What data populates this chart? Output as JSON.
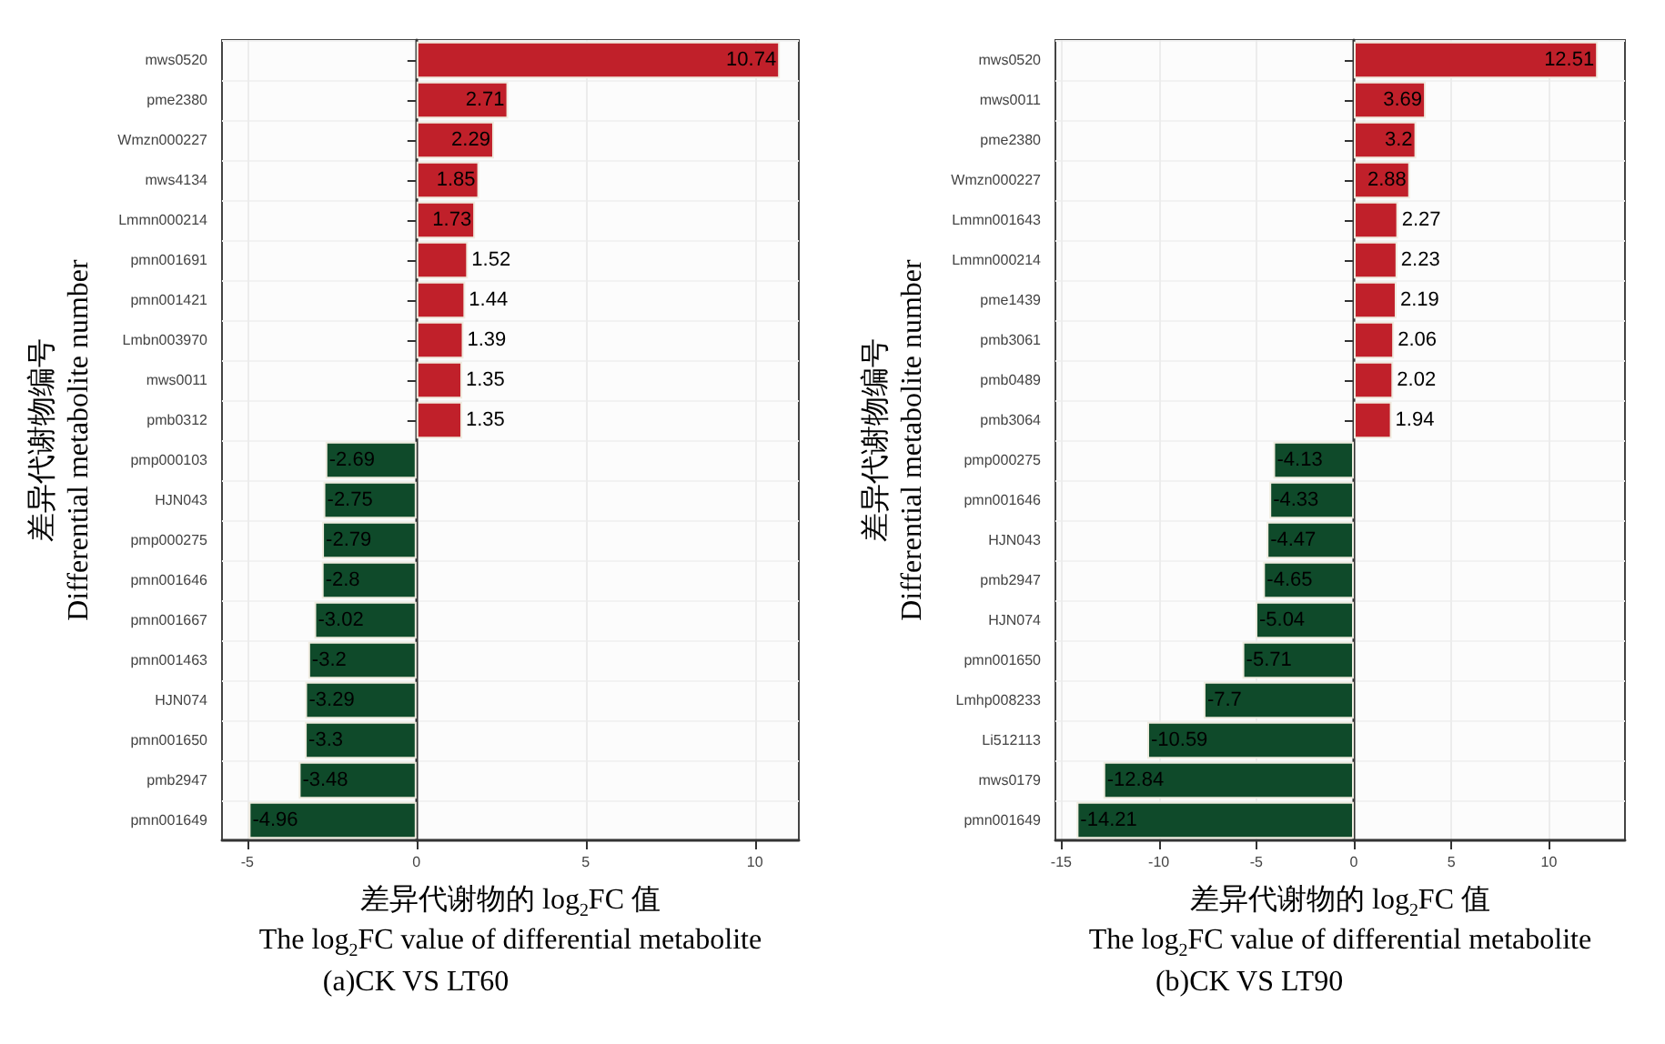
{
  "chart_data": [
    {
      "type": "bar",
      "orientation": "horizontal",
      "title": "(a)CK VS LT60",
      "xlabel": "差异代谢物的 log$_{2}$FC 值\nThe log$_{2}$FC value of differential metabolite",
      "ylabel": "差异代谢物编号\nDifferential metabolite number",
      "categories": [
        "mws0520",
        "pme2380",
        "Wmzn000227",
        "mws4134",
        "Lmmn000214",
        "pmn001691",
        "pmn001421",
        "Lmbn003970",
        "mws0011",
        "pmb0312",
        "pmp000103",
        "HJN043",
        "pmp000275",
        "pmn001646",
        "pmn001667",
        "pmn001463",
        "HJN074",
        "pmn001650",
        "pmb2947",
        "pmn001649"
      ],
      "values": [
        10.74,
        2.71,
        2.29,
        1.85,
        1.73,
        1.52,
        1.44,
        1.39,
        1.35,
        1.35,
        -2.69,
        -2.75,
        -2.79,
        -2.8,
        -3.02,
        -3.2,
        -3.29,
        -3.3,
        -3.48,
        -4.96
      ],
      "colors": [
        "#c0202a",
        "#c0202a",
        "#c0202a",
        "#c0202a",
        "#c0202a",
        "#c0202a",
        "#c0202a",
        "#c0202a",
        "#c0202a",
        "#c0202a",
        "#0f4a2a",
        "#0f4a2a",
        "#0f4a2a",
        "#0f4a2a",
        "#0f4a2a",
        "#0f4a2a",
        "#0f4a2a",
        "#0f4a2a",
        "#0f4a2a",
        "#0f4a2a"
      ],
      "xlim": [
        -5.75,
        11.3
      ],
      "xticks": [
        -5,
        0,
        5,
        10
      ],
      "grid": true,
      "data_labels": true
    },
    {
      "type": "bar",
      "orientation": "horizontal",
      "title": "(b)CK VS LT90",
      "xlabel": "差异代谢物的 log$_{2}$FC 值\nThe log$_{2}$FC value of differential metabolite",
      "ylabel": "差异代谢物编号\nDifferential metabolite number",
      "categories": [
        "mws0520",
        "mws0011",
        "pme2380",
        "Wmzn000227",
        "Lmmn001643",
        "Lmmn000214",
        "pme1439",
        "pmb3061",
        "pmb0489",
        "pmb3064",
        "pmp000275",
        "pmn001646",
        "HJN043",
        "pmb2947",
        "HJN074",
        "pmn001650",
        "Lmhp008233",
        "Li512113",
        "mws0179",
        "pmn001649"
      ],
      "values": [
        12.51,
        3.69,
        3.2,
        2.88,
        2.27,
        2.23,
        2.19,
        2.06,
        2.02,
        1.94,
        -4.13,
        -4.33,
        -4.47,
        -4.65,
        -5.04,
        -5.71,
        -7.7,
        -10.59,
        -12.84,
        -14.21
      ],
      "colors": [
        "#c0202a",
        "#c0202a",
        "#c0202a",
        "#c0202a",
        "#c0202a",
        "#c0202a",
        "#c0202a",
        "#c0202a",
        "#c0202a",
        "#c0202a",
        "#0f4a2a",
        "#0f4a2a",
        "#0f4a2a",
        "#0f4a2a",
        "#0f4a2a",
        "#0f4a2a",
        "#0f4a2a",
        "#0f4a2a",
        "#0f4a2a",
        "#0f4a2a"
      ],
      "xlim": [
        -15.3,
        13.9
      ],
      "xticks": [
        -15,
        -10,
        -5,
        0,
        5,
        10
      ],
      "grid": true,
      "data_labels": true
    }
  ]
}
